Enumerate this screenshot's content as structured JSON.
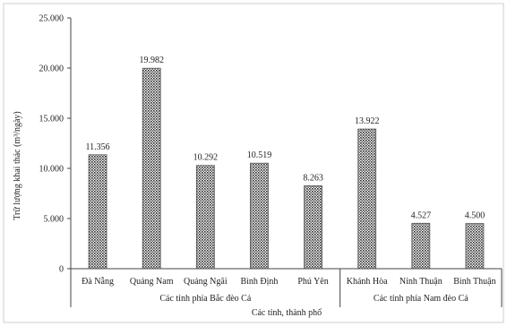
{
  "chart_data": {
    "type": "bar",
    "categories": [
      "Đà Nẵng",
      "Quảng Nam",
      "Quảng Ngãi",
      "Bình Định",
      "Phú Yên",
      "Khánh Hòa",
      "Ninh Thuận",
      "Bình Thuận"
    ],
    "values": [
      11356,
      19982,
      10292,
      10519,
      8263,
      13922,
      4527,
      4500
    ],
    "value_labels": [
      "11.356",
      "19.982",
      "10.292",
      "10.519",
      "8.263",
      "13.922",
      "4.527",
      "4.500"
    ],
    "groups": [
      {
        "label": "Các tỉnh phía Bắc đèo Cả",
        "count": 5
      },
      {
        "label": "Các tỉnh phía Nam đèo Cả",
        "count": 3
      }
    ],
    "ylabel": "Trữ lượng khai thác (m³/ngày)",
    "xlabel": "Các tỉnh, thành phố",
    "ylim": [
      0,
      25000
    ],
    "yticks": [
      0,
      5000,
      10000,
      15000,
      20000,
      25000
    ],
    "ytick_labels": [
      "0",
      "5.000",
      "10.000",
      "15.000",
      "20.000",
      "25.000"
    ],
    "grid": false,
    "bar_fill": "crosshatch",
    "colors": {
      "bar": "#333333",
      "axis": "#444444",
      "background": "#ffffff"
    }
  }
}
